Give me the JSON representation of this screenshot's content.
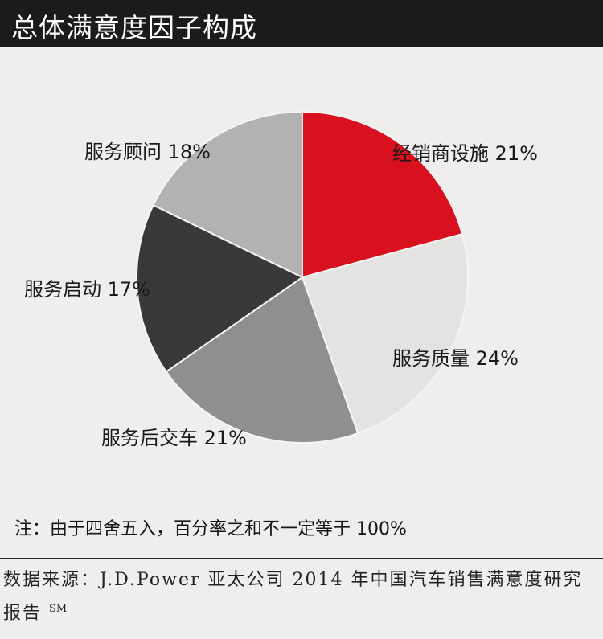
{
  "header": {
    "title": "总体满意度因子构成"
  },
  "chart_data": {
    "type": "pie",
    "title": "总体满意度因子构成",
    "slices": [
      {
        "label": "经销商设施",
        "value": 21,
        "display": "经销商设施 21%",
        "color": "#d9101e"
      },
      {
        "label": "服务质量",
        "value": 24,
        "display": "服务质量 24%",
        "color": "#e3e3e1"
      },
      {
        "label": "服务后交车",
        "value": 21,
        "display": "服务后交车 21%",
        "color": "#8f8f8f"
      },
      {
        "label": "服务启动",
        "value": 17,
        "display": "服务启动 17%",
        "color": "#3a3839"
      },
      {
        "label": "服务顾问",
        "value": 18,
        "display": "服务顾问 18%",
        "color": "#b2b2b2"
      }
    ]
  },
  "footer": {
    "note": "注：由于四舍五入，百分率之和不一定等于 100%",
    "source": "数据来源：J.D.Power 亚太公司 2014 年中国汽车销售满意度研究报告",
    "source_mark": "SM"
  }
}
